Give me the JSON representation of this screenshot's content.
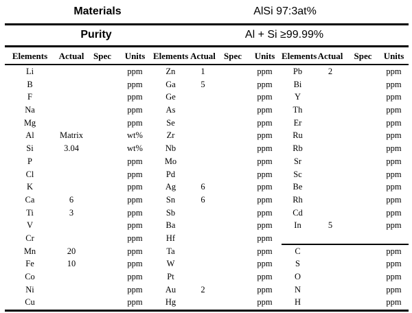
{
  "header": {
    "materials_label": "Materials",
    "materials_value": "AlSi 97:3at%",
    "purity_label": "Purity",
    "purity_value": "Al + Si ≥99.99%"
  },
  "table": {
    "column_headers": [
      "Elements",
      "Actual",
      "Spec",
      "Units"
    ],
    "groups": [
      {
        "name": "group-1",
        "rows": [
          [
            "Li",
            "",
            "",
            "ppm"
          ],
          [
            "B",
            "",
            "",
            "ppm"
          ],
          [
            "F",
            "",
            "",
            "ppm"
          ],
          [
            "Na",
            "",
            "",
            "ppm"
          ],
          [
            "Mg",
            "",
            "",
            "ppm"
          ],
          [
            "Al",
            "Matrix",
            "",
            "wt%"
          ],
          [
            "Si",
            "3.04",
            "",
            "wt%"
          ],
          [
            "P",
            "",
            "",
            "ppm"
          ],
          [
            "Cl",
            "",
            "",
            "ppm"
          ],
          [
            "K",
            "",
            "",
            "ppm"
          ],
          [
            "Ca",
            "6",
            "",
            "ppm"
          ],
          [
            "Ti",
            "3",
            "",
            "ppm"
          ],
          [
            "V",
            "",
            "",
            "ppm"
          ],
          [
            "Cr",
            "",
            "",
            "ppm"
          ],
          [
            "Mn",
            "20",
            "",
            "ppm"
          ],
          [
            "Fe",
            "10",
            "",
            "ppm"
          ],
          [
            "Co",
            "",
            "",
            "ppm"
          ],
          [
            "Ni",
            "",
            "",
            "ppm"
          ],
          [
            "Cu",
            "",
            "",
            "ppm"
          ]
        ]
      },
      {
        "name": "group-2",
        "rows": [
          [
            "Zn",
            "1",
            "",
            "ppm"
          ],
          [
            "Ga",
            "5",
            "",
            "ppm"
          ],
          [
            "Ge",
            "",
            "",
            "ppm"
          ],
          [
            "As",
            "",
            "",
            "ppm"
          ],
          [
            "Se",
            "",
            "",
            "ppm"
          ],
          [
            "Zr",
            "",
            "",
            "ppm"
          ],
          [
            "Nb",
            "",
            "",
            "ppm"
          ],
          [
            "Mo",
            "",
            "",
            "ppm"
          ],
          [
            "Pd",
            "",
            "",
            "ppm"
          ],
          [
            "Ag",
            "6",
            "",
            "ppm"
          ],
          [
            "Sn",
            "6",
            "",
            "ppm"
          ],
          [
            "Sb",
            "",
            "",
            "ppm"
          ],
          [
            "Ba",
            "",
            "",
            "ppm"
          ],
          [
            "Hf",
            "",
            "",
            "ppm"
          ],
          [
            "Ta",
            "",
            "",
            "ppm"
          ],
          [
            "W",
            "",
            "",
            "ppm"
          ],
          [
            "Pt",
            "",
            "",
            "ppm"
          ],
          [
            "Au",
            "2",
            "",
            "ppm"
          ],
          [
            "Hg",
            "",
            "",
            "ppm"
          ]
        ]
      },
      {
        "name": "group-3",
        "divider_below_row": 13,
        "rows": [
          [
            "Pb",
            "2",
            "",
            "ppm"
          ],
          [
            "Bi",
            "",
            "",
            "ppm"
          ],
          [
            "Y",
            "",
            "",
            "ppm"
          ],
          [
            "Th",
            "",
            "",
            "ppm"
          ],
          [
            "Er",
            "",
            "",
            "ppm"
          ],
          [
            "Ru",
            "",
            "",
            "ppm"
          ],
          [
            "Rb",
            "",
            "",
            "ppm"
          ],
          [
            "Sr",
            "",
            "",
            "ppm"
          ],
          [
            "Sc",
            "",
            "",
            "ppm"
          ],
          [
            "Be",
            "",
            "",
            "ppm"
          ],
          [
            "Rh",
            "",
            "",
            "ppm"
          ],
          [
            "Cd",
            "",
            "",
            "ppm"
          ],
          [
            "In",
            "5",
            "",
            "ppm"
          ],
          [
            "",
            "",
            "",
            ""
          ],
          [
            "C",
            "",
            "",
            "ppm"
          ],
          [
            "S",
            "",
            "",
            "ppm"
          ],
          [
            "O",
            "",
            "",
            "ppm"
          ],
          [
            "N",
            "",
            "",
            "ppm"
          ],
          [
            "H",
            "",
            "",
            "ppm"
          ]
        ]
      }
    ]
  }
}
